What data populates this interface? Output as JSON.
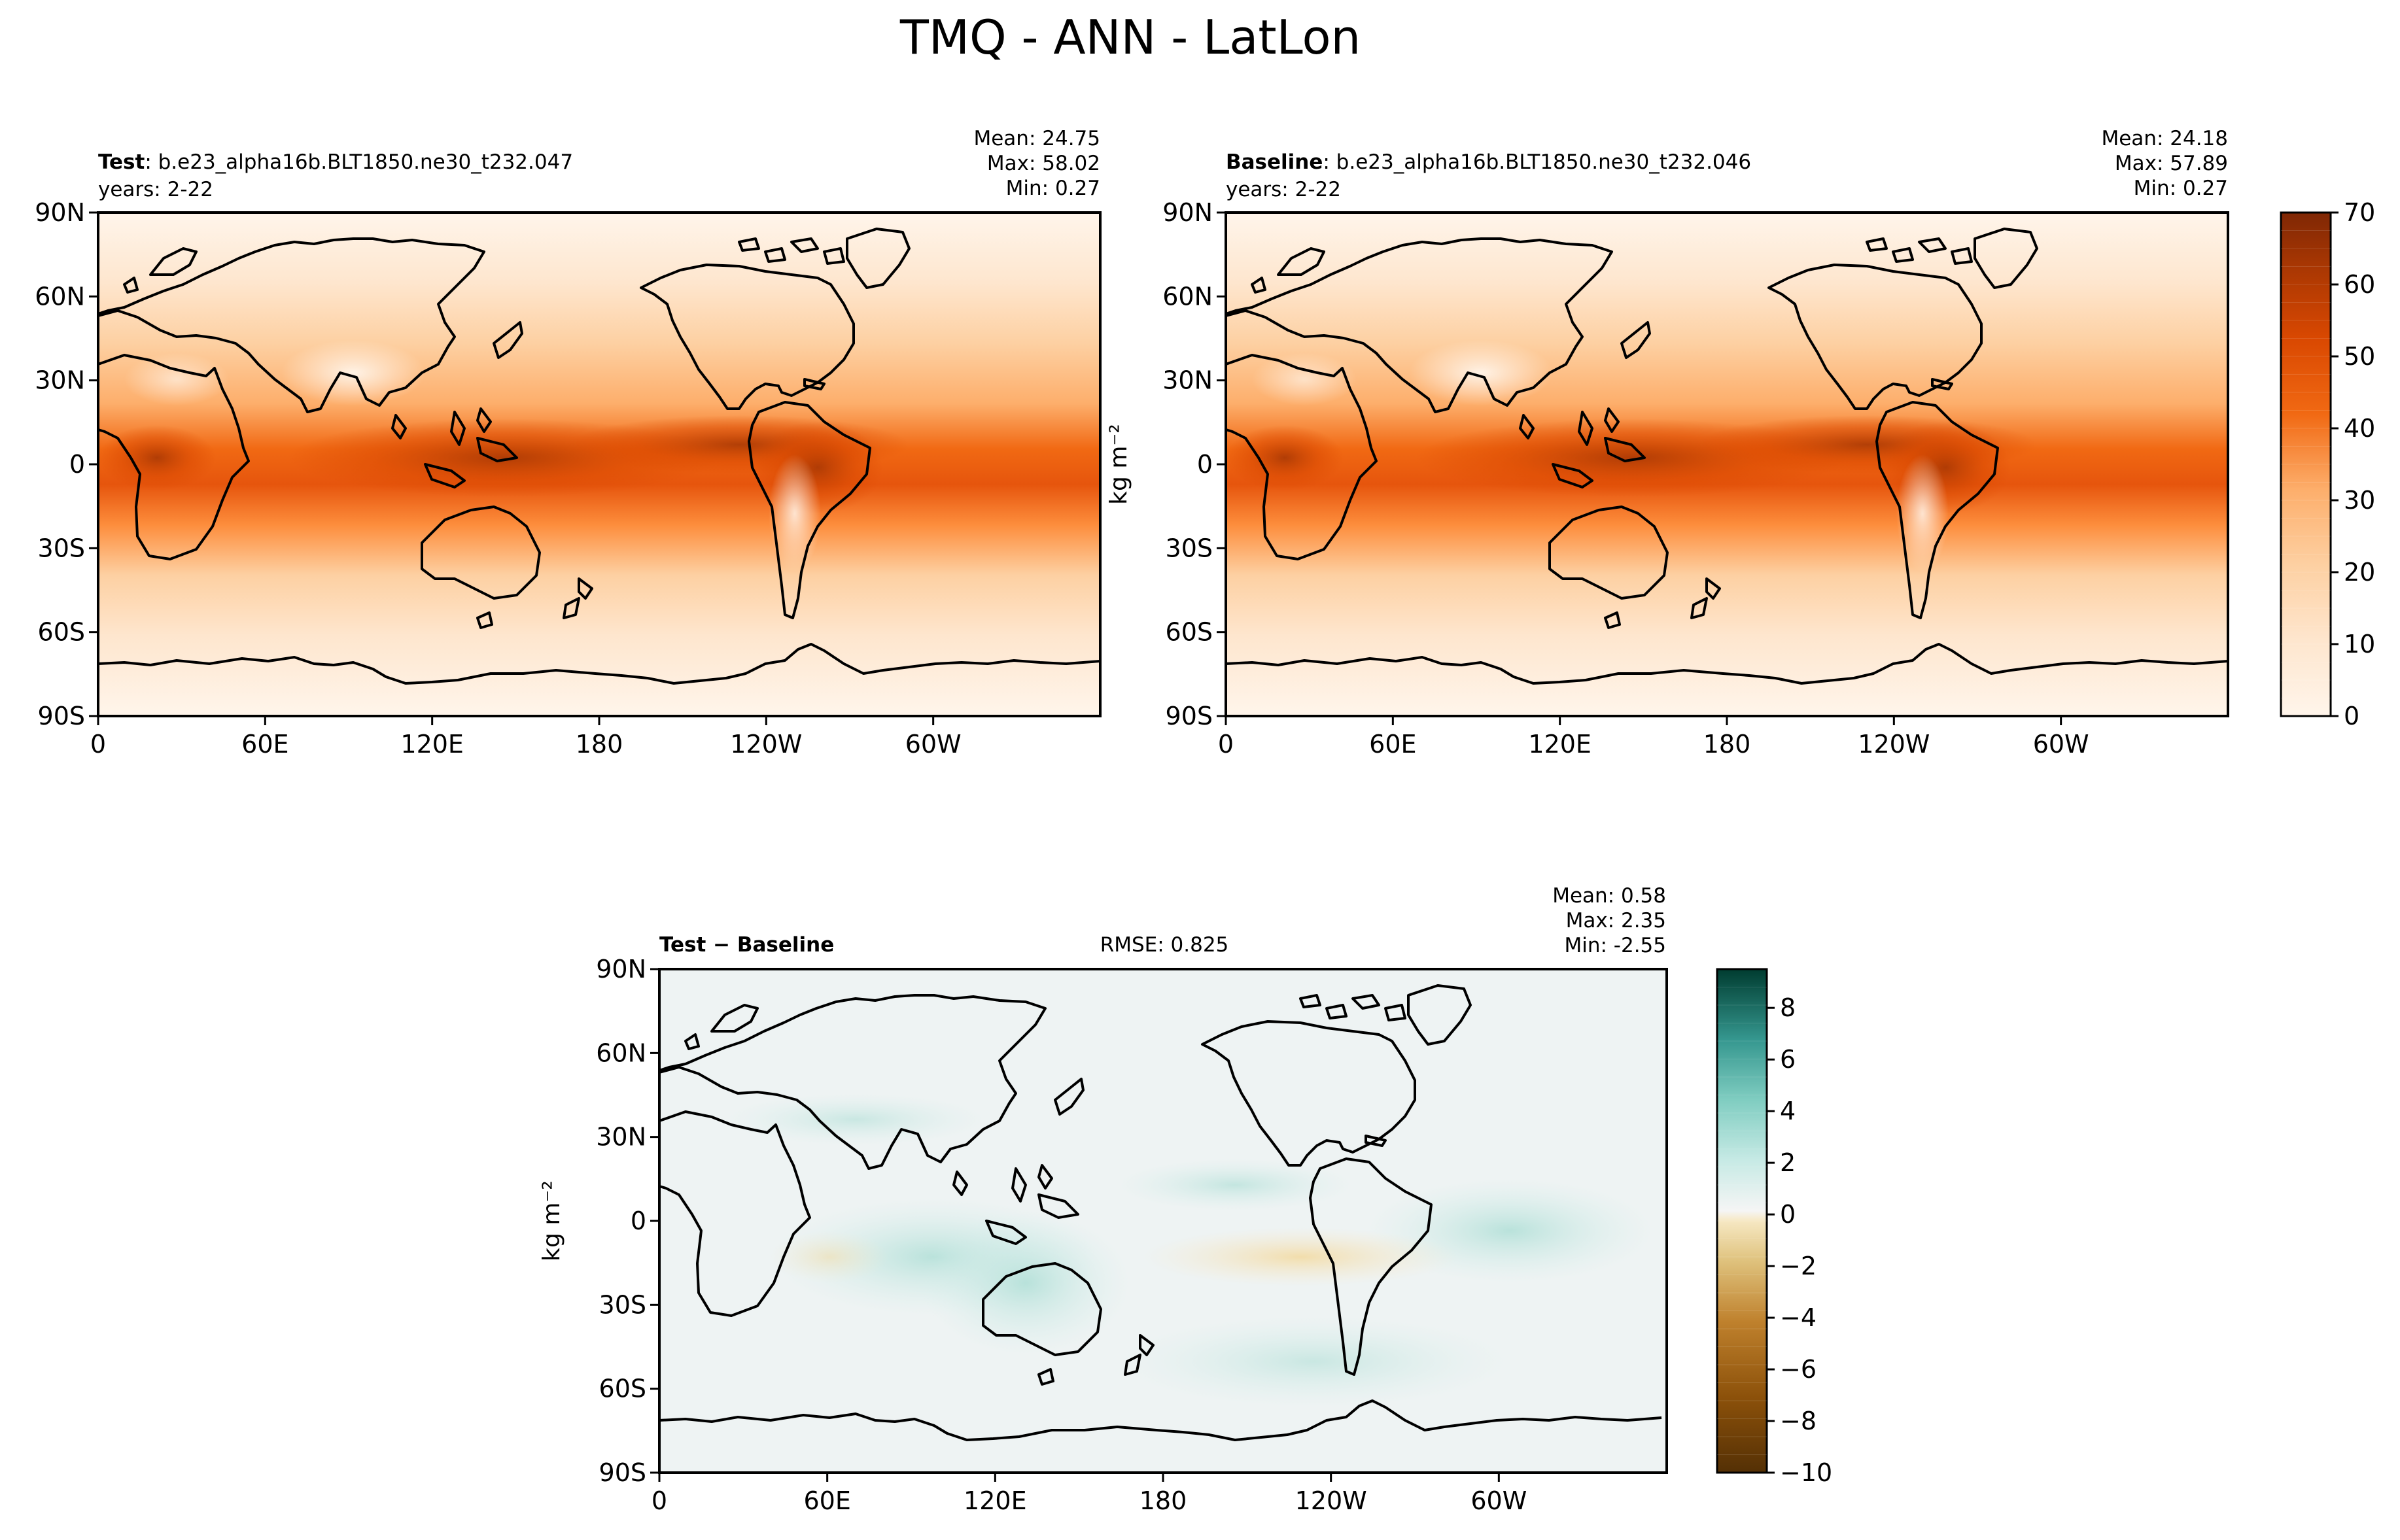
{
  "figure_title": "TMQ - ANN - LatLon",
  "lat_ticks": [
    "90N",
    "60N",
    "30N",
    "0",
    "30S",
    "60S",
    "90S"
  ],
  "lon_ticks": [
    "0",
    "60E",
    "120E",
    "180",
    "120W",
    "60W"
  ],
  "panels": {
    "test": {
      "label_bold": "Test",
      "label_rest": ": b.e23_alpha16b.BLT1850.ne30_t232.047",
      "years": "years: 2-22",
      "stats": [
        "Mean: 24.75",
        "Max: 58.02",
        "Min:  0.27"
      ]
    },
    "baseline": {
      "label_bold": "Baseline",
      "label_rest": ": b.e23_alpha16b.BLT1850.ne30_t232.046",
      "years": "years: 2-22",
      "stats": [
        "Mean: 24.18",
        "Max: 57.89",
        "Min:  0.27"
      ],
      "units": "kg m⁻²"
    },
    "diff": {
      "label_bold": "Test − Baseline",
      "rmse": "RMSE: 0.825",
      "stats": [
        "Mean:  0.58",
        "Max:  2.35",
        "Min: -2.55"
      ],
      "units": "kg m⁻²"
    }
  },
  "colorbars": {
    "abs": {
      "ticks": [
        "0",
        "10",
        "20",
        "30",
        "40",
        "50",
        "60",
        "70"
      ],
      "min": 0,
      "max": 70
    },
    "diff": {
      "ticks": [
        "−10",
        "−8",
        "−6",
        "−4",
        "−2",
        "0",
        "2",
        "4",
        "6",
        "8"
      ],
      "min": -10,
      "max": 9.5
    }
  },
  "colors": {
    "abs_low": "#fff5eb",
    "abs_mid": "#fd8d3c",
    "abs_high": "#7f2704",
    "diff_low": "#543005",
    "diff_mid": "#f0f3f3",
    "diff_high": "#003c30"
  }
}
